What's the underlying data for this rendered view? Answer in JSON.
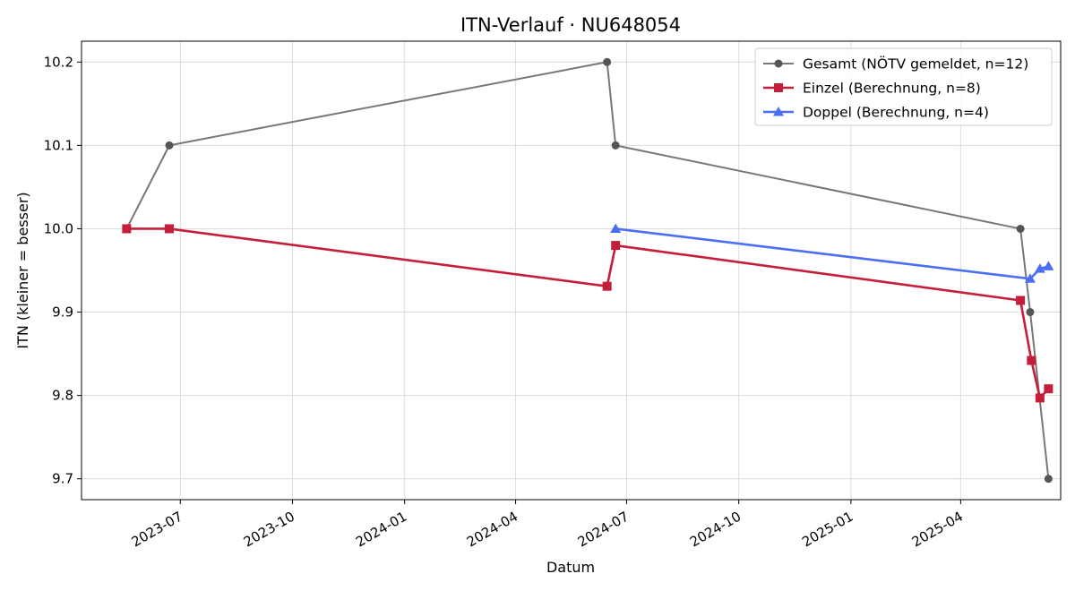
{
  "chart_data": {
    "type": "line",
    "title": "ITN-Verlauf · NU648054",
    "xlabel": "Datum",
    "ylabel": "ITN  (kleiner = besser)",
    "x_type": "date",
    "xlim": [
      "2023-04-11",
      "2025-06-22"
    ],
    "ylim": [
      9.675,
      10.225
    ],
    "x_ticks": [
      "2023-07-01",
      "2023-10-01",
      "2024-01-01",
      "2024-04-01",
      "2024-07-01",
      "2024-10-01",
      "2025-01-01",
      "2025-04-01"
    ],
    "x_tick_labels": [
      "2023-07",
      "2023-10",
      "2024-01",
      "2024-04",
      "2024-07",
      "2024-10",
      "2025-01",
      "2025-04"
    ],
    "y_ticks": [
      9.7,
      9.8,
      9.9,
      10.0,
      10.1,
      10.2
    ],
    "y_tick_labels": [
      "9.7",
      "9.8",
      "9.9",
      "10.0",
      "10.1",
      "10.2"
    ],
    "grid": true,
    "legend_position": "top-right",
    "series": [
      {
        "name": "Gesamt (NÖTV gemeldet, n=12)",
        "color": "#777777",
        "marker": "circle",
        "points": [
          {
            "x": "2023-05-18",
            "y": 10.0
          },
          {
            "x": "2023-06-22",
            "y": 10.1
          },
          {
            "x": "2024-06-15",
            "y": 10.2
          },
          {
            "x": "2024-06-22",
            "y": 10.1
          },
          {
            "x": "2025-05-20",
            "y": 10.0
          },
          {
            "x": "2025-05-28",
            "y": 9.9
          },
          {
            "x": "2025-06-12",
            "y": 9.7
          }
        ]
      },
      {
        "name": "Einzel (Berechnung, n=8)",
        "color": "#c41e3a",
        "marker": "square",
        "points": [
          {
            "x": "2023-05-18",
            "y": 10.0
          },
          {
            "x": "2023-06-22",
            "y": 10.0
          },
          {
            "x": "2024-06-15",
            "y": 9.931
          },
          {
            "x": "2024-06-22",
            "y": 9.98
          },
          {
            "x": "2025-05-20",
            "y": 9.914
          },
          {
            "x": "2025-05-29",
            "y": 9.842
          },
          {
            "x": "2025-06-05",
            "y": 9.797
          },
          {
            "x": "2025-06-12",
            "y": 9.808
          }
        ]
      },
      {
        "name": "Doppel (Berechnung, n=4)",
        "color": "#4c6ef5",
        "marker": "triangle",
        "points": [
          {
            "x": "2024-06-22",
            "y": 10.0
          },
          {
            "x": "2025-05-28",
            "y": 9.94
          },
          {
            "x": "2025-06-05",
            "y": 9.952
          },
          {
            "x": "2025-06-12",
            "y": 9.955
          }
        ]
      }
    ]
  }
}
